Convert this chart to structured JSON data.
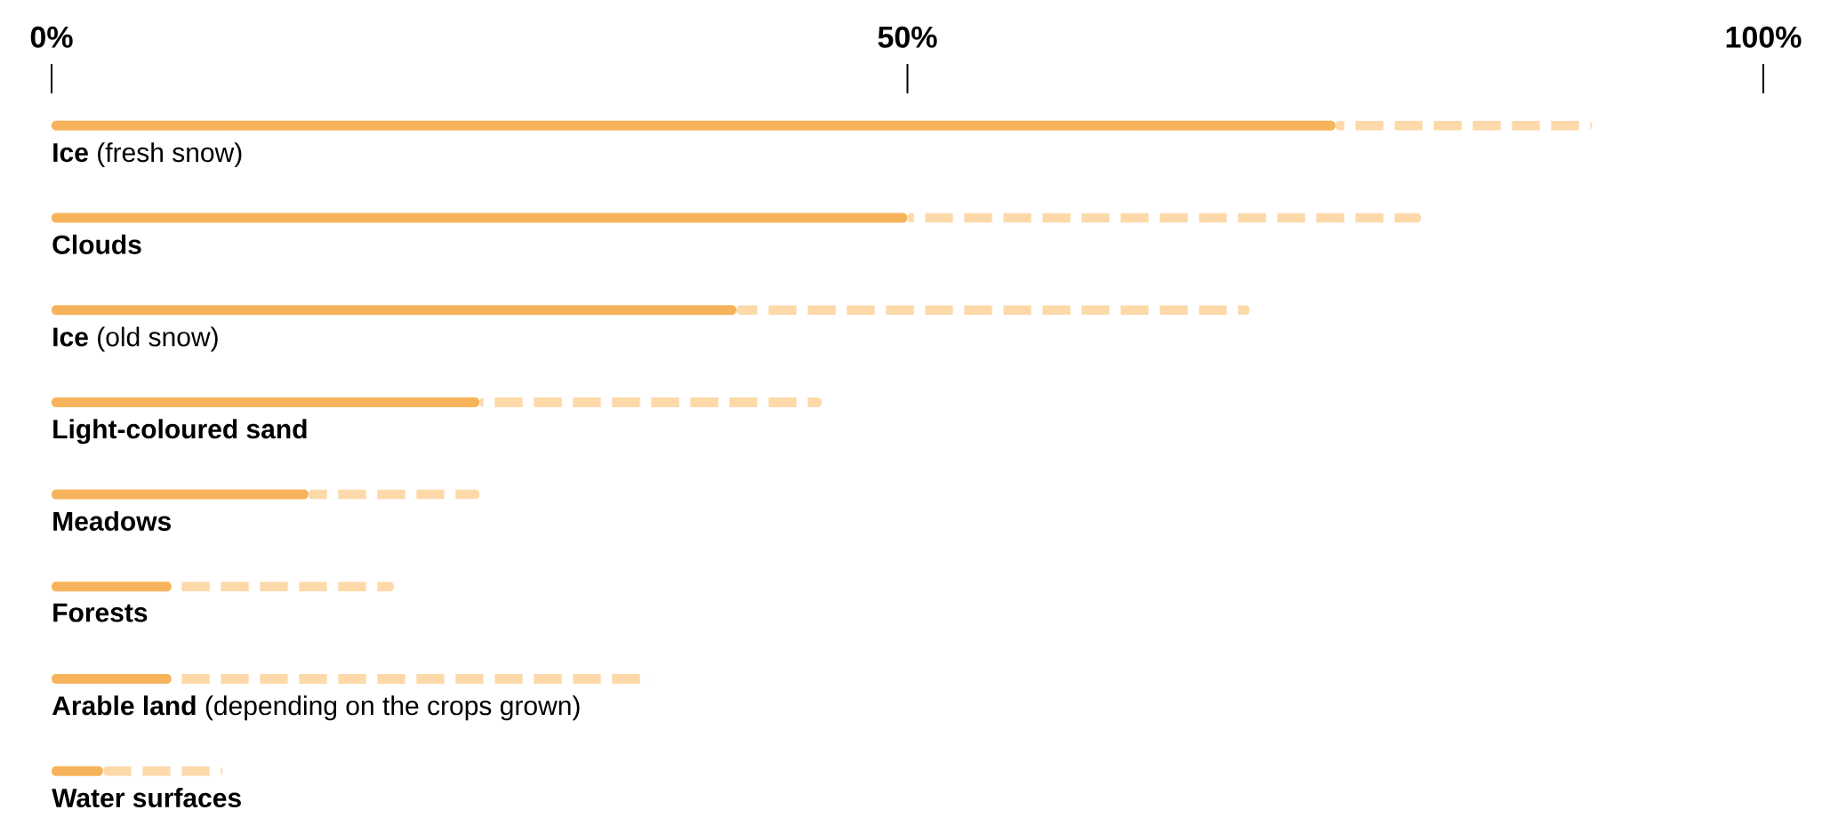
{
  "chart_data": {
    "type": "bar",
    "orientation": "horizontal",
    "stacked": true,
    "categories": [
      "**Ice** (fresh snow)",
      "**Clouds**",
      "**Ice** (old snow)",
      "**Light-coloured sand**",
      "**Meadows**",
      "**Forests**",
      "**Arable land** (depending on the crops grown)",
      "**Water surfaces**"
    ],
    "series": [
      {
        "color": "#f7b35b",
        "values": [
          75,
          50,
          40,
          25,
          15,
          7,
          7,
          3
        ]
      },
      {
        "color": "#fdd9aa",
        "line_style": "dashed",
        "values": [
          15,
          30,
          30,
          20,
          10,
          13,
          28,
          7
        ]
      }
    ],
    "xlim": [
      0,
      100
    ],
    "xticks": [
      {
        "value": 0,
        "label": "0%"
      },
      {
        "value": 50,
        "label": "50%"
      },
      {
        "value": 100,
        "label": "100%"
      }
    ]
  }
}
